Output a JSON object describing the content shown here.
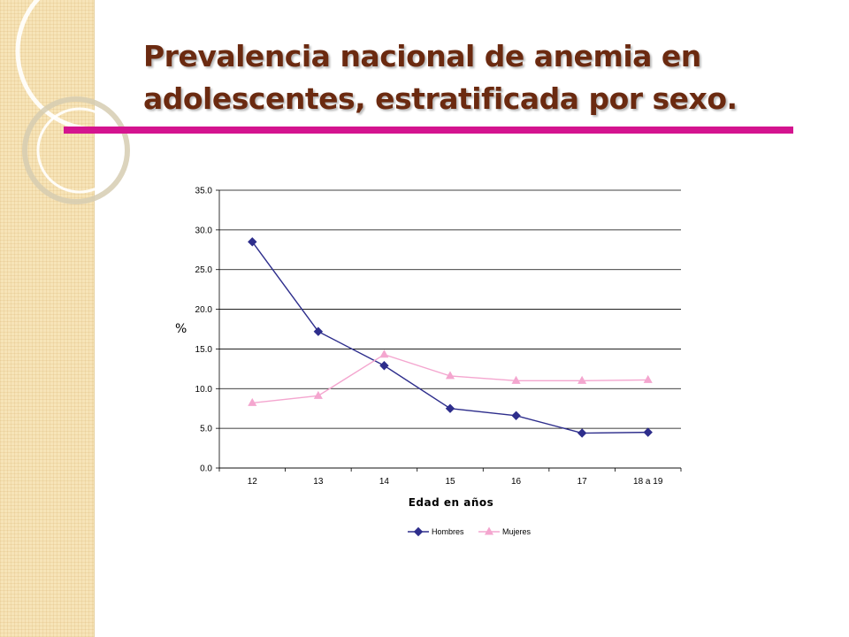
{
  "slide": {
    "title_line1": "Prevalencia nacional de anemia en",
    "title_line2": "adolescentes, estratificada por sexo.",
    "accent_color": "#d4148f",
    "title_color": "#6b2a10"
  },
  "chart_data": {
    "type": "line",
    "categories": [
      "12",
      "13",
      "14",
      "15",
      "16",
      "17",
      "18 a 19"
    ],
    "series": [
      {
        "name": "Hombres",
        "values": [
          28.5,
          17.2,
          12.9,
          7.5,
          6.6,
          4.4,
          4.5
        ],
        "color": "#2e2e8c",
        "marker": "diamond"
      },
      {
        "name": "Mujeres",
        "values": [
          8.2,
          9.1,
          14.3,
          11.6,
          11.0,
          11.0,
          11.1
        ],
        "color": "#f4a6cf",
        "marker": "triangle"
      }
    ],
    "ylabel": "%",
    "xlabel": "Edad en años",
    "ylim": [
      0,
      35
    ],
    "yticks": [
      "0.0",
      "5.0",
      "10.0",
      "15.0",
      "20.0",
      "25.0",
      "30.0",
      "35.0"
    ],
    "grid": true,
    "legend": "bottom"
  }
}
